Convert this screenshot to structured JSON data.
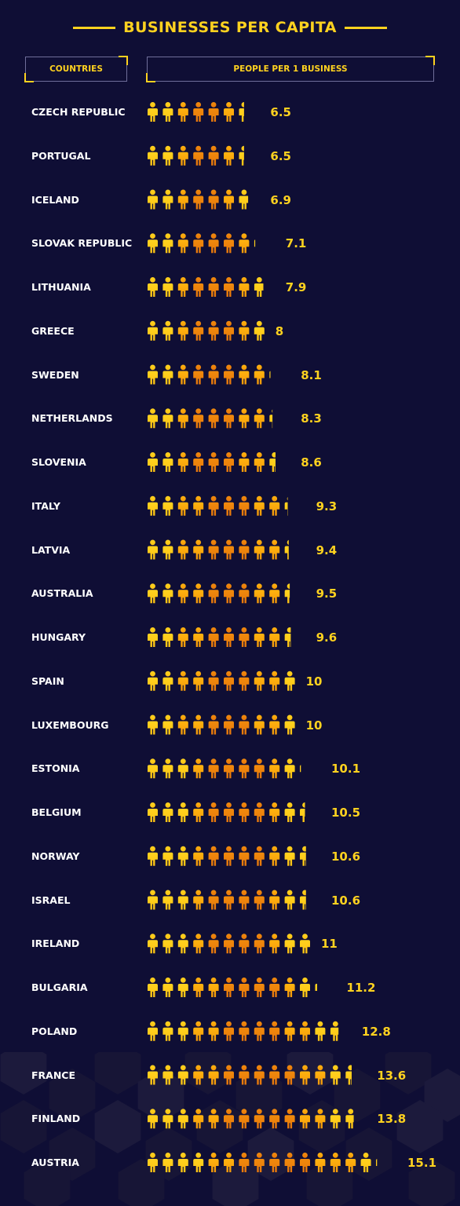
{
  "title": "BUSINESSES PER CAPITA",
  "headers": {
    "countries": "COUNTRIES",
    "metric": "PEOPLE PER 1 BUSINESS"
  },
  "colors": {
    "background": "#0f0e35",
    "accent": "#ffd21f",
    "icon_light": "#ffd21f",
    "icon_dark": "#e8780c",
    "text": "#ffffff"
  },
  "chart_data": {
    "type": "bar",
    "title": "BUSINESSES PER CAPITA",
    "xlabel": "COUNTRIES",
    "ylabel": "PEOPLE PER 1 BUSINESS",
    "unit_glyph": "person-icon",
    "categories": [
      "CZECH REPUBLIC",
      "PORTUGAL",
      "ICELAND",
      "SLOVAK REPUBLIC",
      "LITHUANIA",
      "GREECE",
      "SWEDEN",
      "NETHERLANDS",
      "SLOVENIA",
      "ITALY",
      "LATVIA",
      "AUSTRALIA",
      "HUNGARY",
      "SPAIN",
      "LUXEMBOURG",
      "ESTONIA",
      "BELGIUM",
      "NORWAY",
      "ISRAEL",
      "IRELAND",
      "BULGARIA",
      "POLAND",
      "FRANCE",
      "FINLAND",
      "AUSTRIA"
    ],
    "values": [
      6.5,
      6.5,
      6.9,
      7.1,
      7.9,
      8,
      8.1,
      8.3,
      8.6,
      9.3,
      9.4,
      9.5,
      9.6,
      10,
      10,
      10.1,
      10.5,
      10.6,
      10.6,
      11,
      11.2,
      12.8,
      13.6,
      13.8,
      15.1
    ],
    "labels": [
      "6.5",
      "6.5",
      "6.9",
      "7.1",
      "7.9",
      "8",
      "8.1",
      "8.3",
      "8.6",
      "9.3",
      "9.4",
      "9.5",
      "9.6",
      "10",
      "10",
      "10.1",
      "10.5",
      "10.6",
      "10.6",
      "11",
      "11.2",
      "12.8",
      "13.6",
      "13.8",
      "15.1"
    ]
  }
}
